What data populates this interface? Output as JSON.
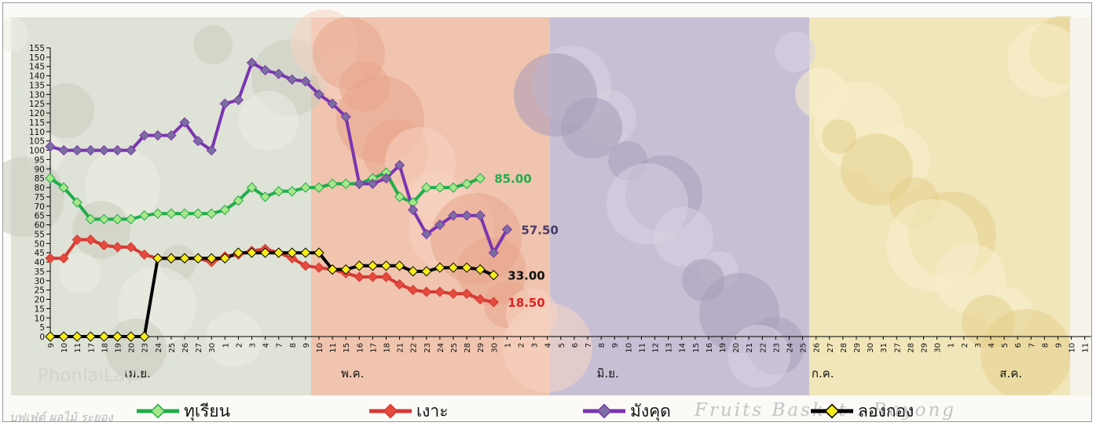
{
  "chart_data": {
    "type": "line",
    "title": "",
    "xlabel": "",
    "ylabel": "",
    "ylim": [
      0,
      155
    ],
    "yticks": [
      0,
      5,
      10,
      15,
      20,
      25,
      30,
      35,
      40,
      45,
      50,
      55,
      60,
      65,
      70,
      75,
      80,
      85,
      90,
      95,
      100,
      105,
      110,
      115,
      120,
      125,
      130,
      135,
      140,
      145,
      150,
      155
    ],
    "x_tick_labels": [
      "9",
      "10",
      "11",
      "17",
      "18",
      "19",
      "20",
      "23",
      "24",
      "25",
      "26",
      "27",
      "30",
      "1",
      "2",
      "3",
      "4",
      "7",
      "8",
      "9",
      "10",
      "11",
      "15",
      "16",
      "17",
      "18",
      "21",
      "22",
      "23",
      "24",
      "25",
      "28",
      "29",
      "30",
      "1",
      "2",
      "3",
      "4",
      "5",
      "6",
      "7",
      "8",
      "9",
      "10",
      "11",
      "12",
      "13",
      "14",
      "15",
      "16",
      "19",
      "20",
      "21",
      "22",
      "23",
      "24",
      "25",
      "26",
      "27",
      "28",
      "29",
      "30",
      "31",
      "27",
      "28",
      "29",
      "30",
      "1",
      "2",
      "3",
      "4",
      "5",
      "6",
      "7",
      "8",
      "9",
      "10",
      "11"
    ],
    "month_labels": [
      {
        "text": "เม.ย.",
        "index": 6.5
      },
      {
        "text": "พ.ค.",
        "index": 22.5
      },
      {
        "text": "มิ.ย.",
        "index": 41.5
      },
      {
        "text": "ก.ค.",
        "index": 57.5
      },
      {
        "text": "ส.ค.",
        "index": 71.5
      }
    ],
    "series": [
      {
        "name": "ทุเรียน",
        "color": "#1fae4a",
        "marker": "#a8e68a",
        "values": [
          85,
          80,
          72,
          63,
          63,
          63,
          63,
          65,
          66,
          66,
          66,
          66,
          66,
          68,
          73,
          80,
          75,
          78,
          78,
          80,
          80,
          82,
          82,
          82,
          85,
          88,
          75,
          72,
          80,
          80,
          80,
          82,
          85
        ]
      },
      {
        "name": "เงาะ",
        "color": "#d63a32",
        "marker": "#e44a3e",
        "values": [
          42,
          42,
          52,
          52,
          49,
          48,
          48,
          44,
          42,
          42,
          42,
          42,
          40,
          43,
          44,
          46,
          47,
          45,
          42,
          38,
          37,
          36,
          34,
          32,
          32,
          32,
          28,
          25,
          24,
          24,
          23,
          23,
          20,
          18.5
        ]
      },
      {
        "name": "มังคุด",
        "color": "#7a35b0",
        "marker": "#7a6ea0",
        "values": [
          102,
          100,
          100,
          100,
          100,
          100,
          100,
          108,
          108,
          108,
          115,
          105,
          100,
          125,
          127,
          147,
          143,
          141,
          138,
          137,
          130,
          125,
          118,
          82,
          82,
          85,
          92,
          68,
          55,
          60,
          65,
          65,
          65,
          45,
          57.5
        ]
      },
      {
        "name": "ลองกอง",
        "color": "#000000",
        "marker": "#f7ec1a",
        "values": [
          0,
          0,
          0,
          0,
          0,
          0,
          0,
          0,
          42,
          42,
          42,
          42,
          42,
          42,
          45,
          45,
          45,
          45,
          45,
          45,
          45,
          36,
          36,
          38,
          38,
          38,
          38,
          35,
          35,
          37,
          37,
          37,
          36,
          33
        ]
      }
    ],
    "end_labels": [
      {
        "text": "85.00",
        "series": 0,
        "color": "#1fae4a"
      },
      {
        "text": "57.50",
        "series": 2,
        "color": "#4a3a66"
      },
      {
        "text": "33.00",
        "series": 3,
        "color": "#111111"
      },
      {
        "text": "18.50",
        "series": 1,
        "color": "#e21f1f"
      }
    ],
    "background_panels": [
      {
        "name": "durian",
        "color": "#dfe2d6"
      },
      {
        "name": "rambutan",
        "color": "#f0c4ae"
      },
      {
        "name": "mangosteen",
        "color": "#c7c0d4"
      },
      {
        "name": "longkong",
        "color": "#f1e6ba"
      }
    ],
    "grid": false,
    "legend_position": "bottom"
  },
  "legend": {
    "items": [
      {
        "label": "ทุเรียน",
        "color": "#1fae4a",
        "marker": "#a8e68a"
      },
      {
        "label": "เงาะ",
        "color": "#d63a32",
        "marker": "#e44a3e"
      },
      {
        "label": "มังคุด",
        "color": "#7a35b0",
        "marker": "#7a6ea0"
      },
      {
        "label": "ลองกอง",
        "color": "#000000",
        "marker": "#f7ec1a"
      }
    ]
  },
  "watermarks": {
    "logo": "PhonlaiLay",
    "left": "บุฟเฟ่ต์ ผลไม้ ระยอง",
    "right": "Fruits Basket : Rayong"
  }
}
